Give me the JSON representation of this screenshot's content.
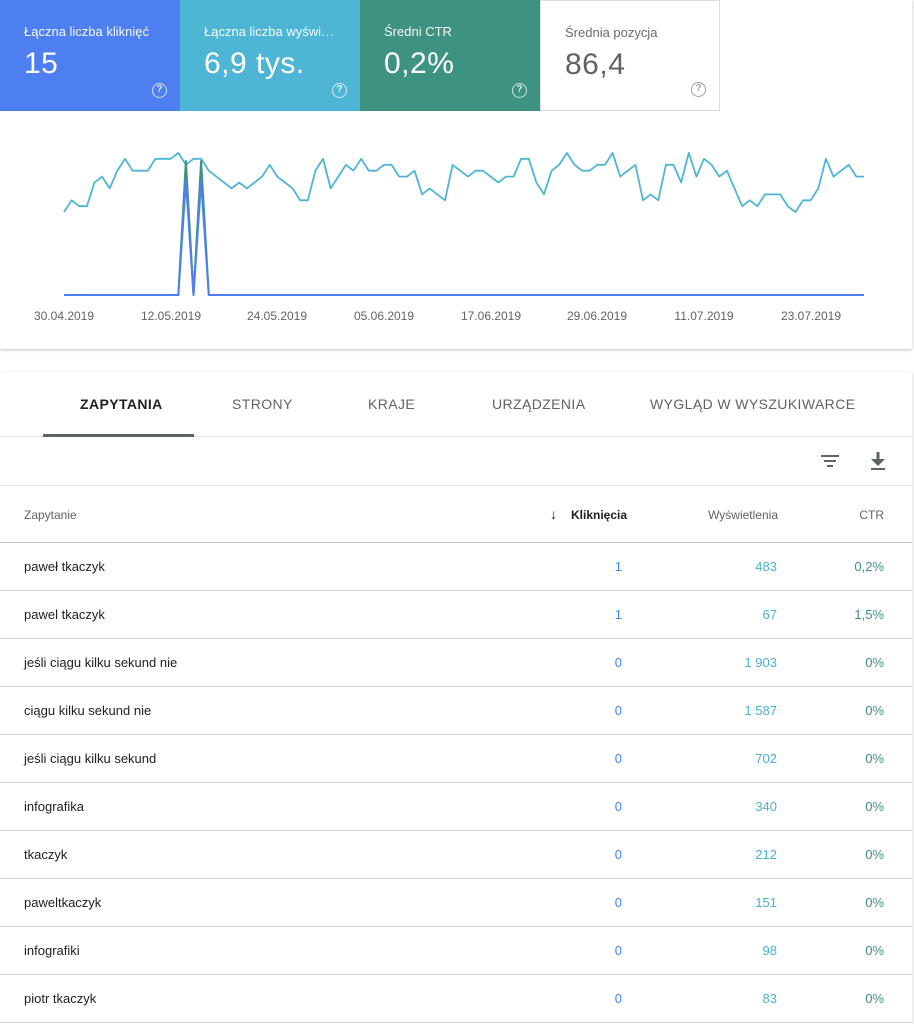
{
  "metrics": [
    {
      "label": "Łączna liczba kliknięć",
      "value": "15",
      "color": "#4e7ff0"
    },
    {
      "label": "Łączna liczba wyświetleń",
      "value": "6,9 tys.",
      "color": "#4fb5d4"
    },
    {
      "label": "Średni CTR",
      "value": "0,2%",
      "color": "#3e9282"
    },
    {
      "label": "Średnia pozycja",
      "value": "86,4",
      "color": "#ffffff"
    }
  ],
  "help_glyph": "?",
  "chart_data": {
    "type": "line",
    "x_ticks": [
      "30.04.2019",
      "12.05.2019",
      "24.05.2019",
      "05.06.2019",
      "17.06.2019",
      "29.06.2019",
      "11.07.2019",
      "23.07.2019"
    ],
    "grid": false,
    "series": [
      {
        "color": "#4fb5d4",
        "values": [
          14,
          16,
          15,
          15,
          19,
          20,
          18,
          21,
          23,
          21,
          21,
          21,
          23,
          23,
          23,
          24,
          22,
          23,
          23,
          21,
          20,
          19,
          18,
          19,
          18,
          19,
          20,
          22,
          20,
          19,
          18,
          16,
          16,
          21,
          23,
          18,
          20,
          22,
          21,
          23,
          21,
          21,
          22,
          22,
          20,
          20,
          21,
          17,
          18,
          17,
          16,
          22,
          21,
          20,
          21,
          21,
          20,
          19,
          20,
          20,
          23,
          23,
          19,
          17,
          21,
          22,
          24,
          22,
          21,
          21,
          22,
          22,
          24,
          20,
          21,
          22,
          16,
          17,
          16,
          22,
          22,
          19,
          24,
          20,
          23,
          22,
          20,
          21,
          18,
          15,
          16,
          15,
          17,
          17,
          17,
          15,
          14,
          16,
          16,
          18,
          23,
          20,
          21,
          22,
          20,
          20
        ]
      },
      {
        "color": "#3e9282",
        "values": [
          0,
          0,
          0,
          0,
          0,
          0,
          0,
          0,
          0,
          0,
          0,
          0,
          0,
          0,
          0,
          0,
          1,
          0,
          1,
          0,
          0,
          0,
          0,
          0,
          0,
          0,
          0,
          0,
          0,
          0,
          0,
          0,
          0,
          0,
          0,
          0,
          0,
          0,
          0,
          0,
          0,
          0,
          0,
          0,
          0,
          0,
          0,
          0,
          0,
          0,
          0,
          0,
          0,
          0,
          0,
          0,
          0,
          0,
          0,
          0,
          0,
          0,
          0,
          0,
          0,
          0,
          0,
          0,
          0,
          0,
          0,
          0,
          0,
          0,
          0,
          0,
          0,
          0,
          0,
          0,
          0,
          0,
          0,
          0,
          0,
          0,
          0,
          0,
          0,
          0,
          0,
          0,
          0,
          0,
          0,
          0,
          0,
          0,
          0,
          0,
          0,
          0,
          0,
          0,
          0,
          0
        ]
      },
      {
        "color": "#4e7ff0",
        "values": [
          0,
          0,
          0,
          0,
          0,
          0,
          0,
          0,
          0,
          0,
          0,
          0,
          0,
          0,
          0,
          0,
          1,
          0,
          1,
          0,
          0,
          0,
          0,
          0,
          0,
          0,
          0,
          0,
          0,
          0,
          0,
          0,
          0,
          0,
          0,
          0,
          0,
          0,
          0,
          0,
          0,
          0,
          0,
          0,
          0,
          0,
          0,
          0,
          0,
          0,
          0,
          0,
          0,
          0,
          0,
          0,
          0,
          0,
          0,
          0,
          0,
          0,
          0,
          0,
          0,
          0,
          0,
          0,
          0,
          0,
          0,
          0,
          0,
          0,
          0,
          0,
          0,
          0,
          0,
          0,
          0,
          0,
          0,
          0,
          0,
          0,
          0,
          0,
          0,
          0,
          0,
          0,
          0,
          0,
          0,
          0,
          0,
          0,
          0,
          0,
          0,
          0,
          0,
          0,
          0,
          0
        ]
      }
    ]
  },
  "tabs": [
    "ZAPYTANIA",
    "STRONY",
    "KRAJE",
    "URZĄDZENIA",
    "WYGLĄD W WYSZUKIWARCE"
  ],
  "table": {
    "sort_icon": "↓",
    "headers": {
      "query": "Zapytanie",
      "clicks": "Kliknięcia",
      "impressions": "Wyświetlenia",
      "ctr": "CTR"
    },
    "rows": [
      {
        "query": "paweł tkaczyk",
        "clicks": "1",
        "impressions": "483",
        "ctr": "0,2%"
      },
      {
        "query": "pawel tkaczyk",
        "clicks": "1",
        "impressions": "67",
        "ctr": "1,5%"
      },
      {
        "query": "jeśli ciągu kilku sekund nie",
        "clicks": "0",
        "impressions": "1 903",
        "ctr": "0%"
      },
      {
        "query": "ciągu kilku sekund nie",
        "clicks": "0",
        "impressions": "1 587",
        "ctr": "0%"
      },
      {
        "query": "jeśli ciągu kilku sekund",
        "clicks": "0",
        "impressions": "702",
        "ctr": "0%"
      },
      {
        "query": "infografika",
        "clicks": "0",
        "impressions": "340",
        "ctr": "0%"
      },
      {
        "query": "tkaczyk",
        "clicks": "0",
        "impressions": "212",
        "ctr": "0%"
      },
      {
        "query": "paweltkaczyk",
        "clicks": "0",
        "impressions": "151",
        "ctr": "0%"
      },
      {
        "query": "infografiki",
        "clicks": "0",
        "impressions": "98",
        "ctr": "0%"
      },
      {
        "query": "piotr tkaczyk",
        "clicks": "0",
        "impressions": "83",
        "ctr": "0%"
      }
    ]
  }
}
